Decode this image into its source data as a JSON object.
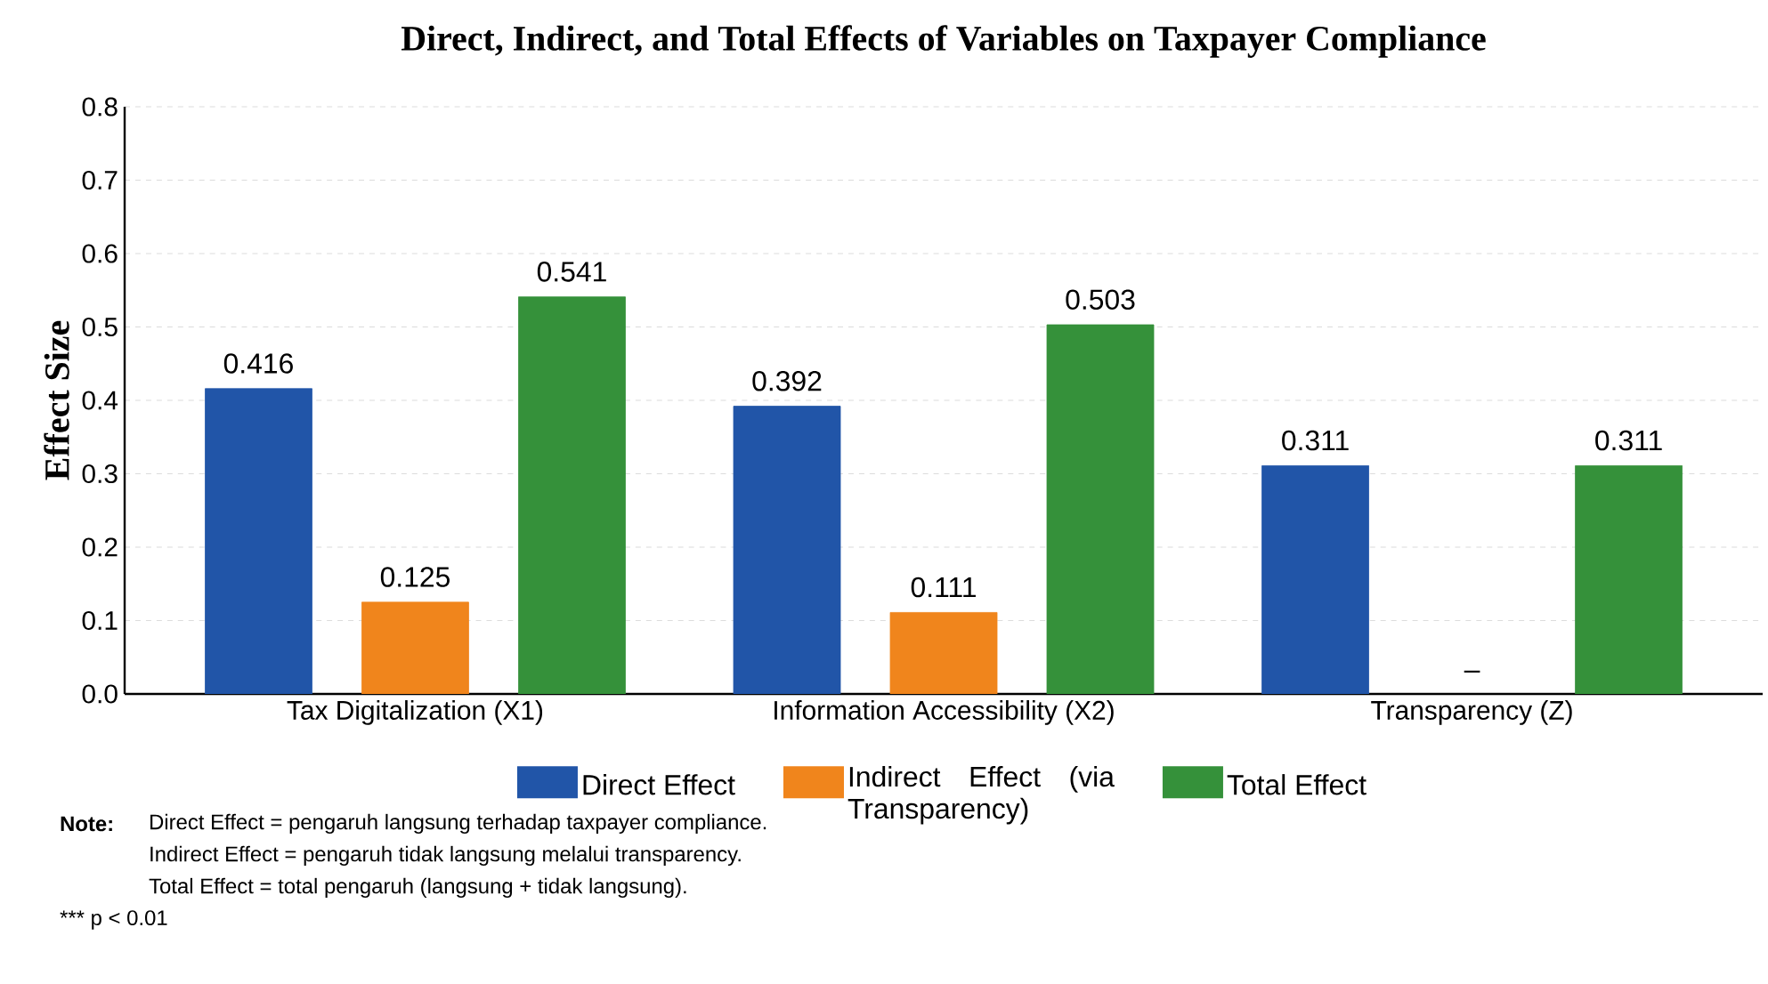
{
  "chart_data": {
    "type": "bar",
    "title": "Direct, Indirect, and Total Effects of Variables on Taxpayer Compliance",
    "ylabel": "Effect Size",
    "categories": [
      "Tax Digitalization (X1)",
      "Information Accessibility (X2)",
      "Transparency (Z)"
    ],
    "series": [
      {
        "name": "Direct Effect",
        "color": "#2155a8",
        "values": [
          0.416,
          0.392,
          0.311
        ],
        "value_labels": [
          "0.416",
          "0.392",
          "0.311"
        ]
      },
      {
        "name": "Indirect Effect (via Transparency)",
        "color": "#f0851c",
        "values": [
          0.125,
          0.111,
          null
        ],
        "value_labels": [
          "0.125",
          "0.111",
          "–"
        ]
      },
      {
        "name": "Total Effect",
        "color": "#35913a",
        "values": [
          0.541,
          0.503,
          0.311
        ],
        "value_labels": [
          "0.541",
          "0.503",
          "0.311"
        ]
      }
    ],
    "ylim": [
      0,
      0.8
    ],
    "yticks": [
      {
        "value": 0,
        "label": "0.0"
      },
      0.1,
      0.2,
      0.3,
      0.4,
      0.5,
      0.6,
      0.7,
      0.8
    ],
    "grid": "y",
    "legend": "bottom",
    "annotations": [
      "Note:",
      "Direct Effect = pengaruh langsung terhadap taxpayer compliance.",
      "Indirect Effect = pengaruh tidak langsung melalui transparency.",
      "Total Effect = total pengaruh (langsung + tidak langsung).",
      "*** p < 0.01"
    ]
  }
}
